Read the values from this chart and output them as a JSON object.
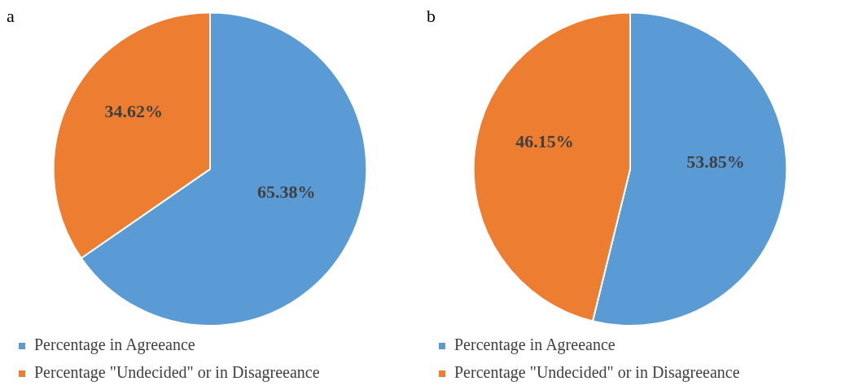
{
  "chart_data": [
    {
      "type": "pie",
      "title": "a",
      "categories": [
        "Percentage in Agreeance",
        "Percentage \"Undecided\" or in Disagreeance"
      ],
      "values": [
        65.38,
        34.62
      ],
      "colors": [
        "#5b9bd5",
        "#ed7d31"
      ],
      "value_labels": [
        "65.38%",
        "34.62%"
      ],
      "legend": "bottom"
    },
    {
      "type": "pie",
      "title": "b",
      "categories": [
        "Percentage in Agreeance",
        "Percentage \"Undecided\" or in Disagreeance"
      ],
      "values": [
        53.85,
        46.15
      ],
      "colors": [
        "#5b9bd5",
        "#ed7d31"
      ],
      "value_labels": [
        "53.85%",
        "46.15%"
      ],
      "legend": "bottom"
    }
  ]
}
